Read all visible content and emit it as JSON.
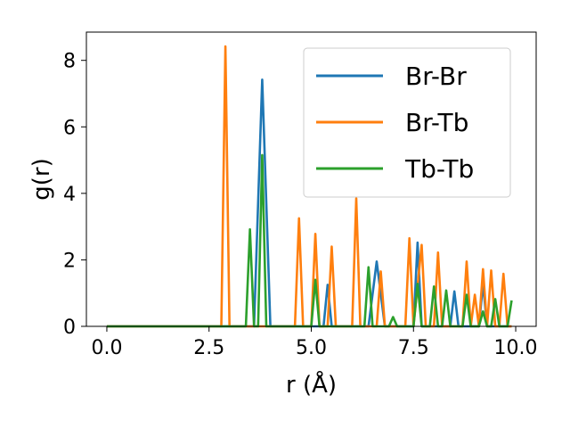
{
  "chart_data": {
    "type": "line",
    "xlabel": "r (Å)",
    "ylabel": "g(r)",
    "xlim": [
      -0.5,
      10.5
    ],
    "ylim": [
      0,
      8.85
    ],
    "xticks": [
      0.0,
      2.5,
      5.0,
      7.5,
      10.0
    ],
    "xtick_labels": [
      "0.0",
      "2.5",
      "5.0",
      "7.5",
      "10.0"
    ],
    "yticks": [
      0,
      2,
      4,
      6,
      8
    ],
    "ytick_labels": [
      "0",
      "2",
      "4",
      "6",
      "8"
    ],
    "grid": false,
    "legend_position": "top-right",
    "series": [
      {
        "name": "Br-Br",
        "color": "#1f77b4",
        "x": [
          0.0,
          3.6,
          3.8,
          4.0,
          5.3,
          5.4,
          5.5,
          6.4,
          6.6,
          6.8,
          7.5,
          7.6,
          7.7,
          8.4,
          8.5,
          8.6,
          9.1,
          9.2,
          9.3,
          9.4,
          9.9
        ],
        "y": [
          0,
          0,
          7.42,
          0,
          0,
          1.25,
          0,
          0,
          1.95,
          0,
          0,
          2.52,
          0,
          0,
          1.05,
          0,
          0,
          1.28,
          0,
          0,
          0
        ]
      },
      {
        "name": "Br-Tb",
        "color": "#ff7f0e",
        "x": [
          0.0,
          2.8,
          2.9,
          3.0,
          4.6,
          4.7,
          4.8,
          5.0,
          5.1,
          5.2,
          5.4,
          5.5,
          5.6,
          6.0,
          6.1,
          6.2,
          6.6,
          6.7,
          6.8,
          7.3,
          7.4,
          7.5,
          7.7,
          7.8,
          8.0,
          8.1,
          8.2,
          8.7,
          8.8,
          8.9,
          9.0,
          9.1,
          9.2,
          9.3,
          9.4,
          9.5,
          9.6,
          9.7,
          9.8,
          9.9
        ],
        "y": [
          0,
          0,
          8.42,
          0,
          0,
          3.25,
          0,
          0,
          2.78,
          0,
          0,
          2.4,
          0,
          0,
          3.85,
          0,
          0,
          1.65,
          0,
          0,
          2.65,
          0,
          2.45,
          0,
          0,
          2.22,
          0,
          0,
          1.95,
          0,
          0.95,
          0,
          1.72,
          0,
          1.68,
          0,
          0,
          1.58,
          0,
          0
        ]
      },
      {
        "name": "Tb-Tb",
        "color": "#2ca02c",
        "x": [
          0.0,
          3.4,
          3.5,
          3.6,
          3.7,
          3.8,
          3.9,
          5.0,
          5.1,
          5.2,
          6.3,
          6.4,
          6.5,
          6.9,
          7.0,
          7.1,
          7.5,
          7.6,
          7.7,
          7.9,
          8.0,
          8.1,
          8.2,
          8.3,
          8.4,
          8.7,
          8.8,
          8.9,
          9.1,
          9.2,
          9.3,
          9.4,
          9.5,
          9.6,
          9.7,
          9.8,
          9.9
        ],
        "y": [
          0,
          0,
          2.92,
          0,
          0,
          5.15,
          0,
          0,
          1.4,
          0,
          0,
          1.78,
          0,
          0,
          0.28,
          0,
          0,
          1.28,
          0,
          0,
          1.2,
          0,
          0,
          1.08,
          0,
          0,
          0.95,
          0,
          0,
          0.45,
          0,
          0,
          0.82,
          0,
          0,
          0,
          0.78
        ]
      }
    ]
  }
}
